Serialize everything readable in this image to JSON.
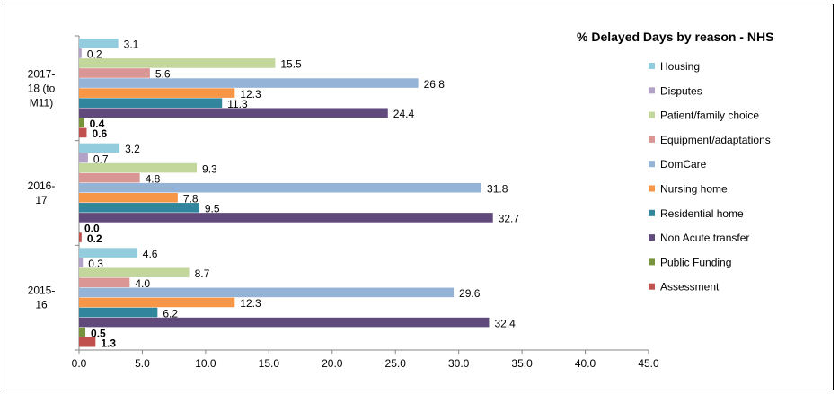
{
  "chart_data": {
    "type": "bar",
    "orientation": "horizontal",
    "title": "% Delayed Days by reason - NHS",
    "xlabel": "",
    "ylabel": "",
    "xlim": [
      0,
      45
    ],
    "x_ticks": [
      "0.0",
      "5.0",
      "10.0",
      "15.0",
      "20.0",
      "25.0",
      "30.0",
      "35.0",
      "40.0",
      "45.0"
    ],
    "grid": false,
    "legend_position": "right",
    "categories": [
      {
        "label_lines": [
          "2017-",
          "18 (to",
          "M11)"
        ]
      },
      {
        "label_lines": [
          "2016-",
          "17"
        ]
      },
      {
        "label_lines": [
          "2015-",
          "16"
        ]
      }
    ],
    "series": [
      {
        "name": "Housing",
        "color": "#93CDDD",
        "values": [
          3.1,
          3.2,
          4.6
        ],
        "labels": [
          "3.1",
          "3.2",
          "4.6"
        ],
        "bold": false
      },
      {
        "name": "Disputes",
        "color": "#B3A2C7",
        "values": [
          0.2,
          0.7,
          0.3
        ],
        "labels": [
          "0.2",
          "0.7",
          "0.3"
        ],
        "bold": false
      },
      {
        "name": "Patient/family choice",
        "color": "#C3D69B",
        "values": [
          15.5,
          9.3,
          8.7
        ],
        "labels": [
          "15.5",
          "9.3",
          "8.7"
        ],
        "bold": false
      },
      {
        "name": "Equipment/adaptations",
        "color": "#D99694",
        "values": [
          5.6,
          4.8,
          4.0
        ],
        "labels": [
          "5.6",
          "4.8",
          "4.0"
        ],
        "bold": false
      },
      {
        "name": "DomCare",
        "color": "#95B3D7",
        "values": [
          26.8,
          31.8,
          29.6
        ],
        "labels": [
          "26.8",
          "31.8",
          "29.6"
        ],
        "bold": false
      },
      {
        "name": "Nursing home",
        "color": "#F79646",
        "values": [
          12.3,
          7.8,
          12.3
        ],
        "labels": [
          "12.3",
          "7.8",
          "12.3"
        ],
        "bold": false
      },
      {
        "name": "Residential home",
        "color": "#31859C",
        "values": [
          11.3,
          9.5,
          6.2
        ],
        "labels": [
          "11.3",
          "9.5",
          "6.2"
        ],
        "bold": false
      },
      {
        "name": "Non Acute transfer",
        "color": "#604A7B",
        "values": [
          24.4,
          32.7,
          32.4
        ],
        "labels": [
          "24.4",
          "32.7",
          "32.4"
        ],
        "bold": false
      },
      {
        "name": "Public Funding",
        "color": "#77933C",
        "values": [
          0.4,
          0.0,
          0.5
        ],
        "labels": [
          "0.4",
          "0.0",
          "0.5"
        ],
        "bold": true
      },
      {
        "name": "Assessment",
        "color": "#C0504D",
        "values": [
          0.6,
          0.2,
          1.3
        ],
        "labels": [
          "0.6",
          "0.2",
          "1.3"
        ],
        "bold": true
      }
    ]
  }
}
